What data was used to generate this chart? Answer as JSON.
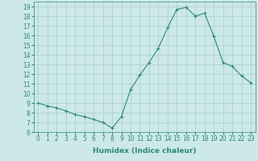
{
  "x": [
    0,
    1,
    2,
    3,
    4,
    5,
    6,
    7,
    8,
    9,
    10,
    11,
    12,
    13,
    14,
    15,
    16,
    17,
    18,
    19,
    20,
    21,
    22,
    23
  ],
  "y": [
    9.0,
    8.7,
    8.5,
    8.2,
    7.8,
    7.6,
    7.3,
    7.0,
    6.4,
    7.6,
    10.4,
    11.9,
    13.2,
    14.7,
    16.8,
    18.7,
    18.9,
    18.0,
    18.3,
    15.9,
    13.2,
    12.8,
    11.8,
    11.1
  ],
  "line_color": "#2e8b72",
  "marker": "+",
  "marker_size": 3,
  "marker_linewidth": 0.8,
  "xlabel": "Humidex (Indice chaleur)",
  "xlim": [
    -0.5,
    23.5
  ],
  "ylim": [
    6,
    19.5
  ],
  "yticks": [
    6,
    7,
    8,
    9,
    10,
    11,
    12,
    13,
    14,
    15,
    16,
    17,
    18,
    19
  ],
  "xticks": [
    0,
    1,
    2,
    3,
    4,
    5,
    6,
    7,
    8,
    9,
    10,
    11,
    12,
    13,
    14,
    15,
    16,
    17,
    18,
    19,
    20,
    21,
    22,
    23
  ],
  "bg_color": "#cce8e8",
  "grid_color": "#aacccc",
  "tick_label_fontsize": 5.5,
  "xlabel_fontsize": 6.5,
  "line_width": 0.8
}
